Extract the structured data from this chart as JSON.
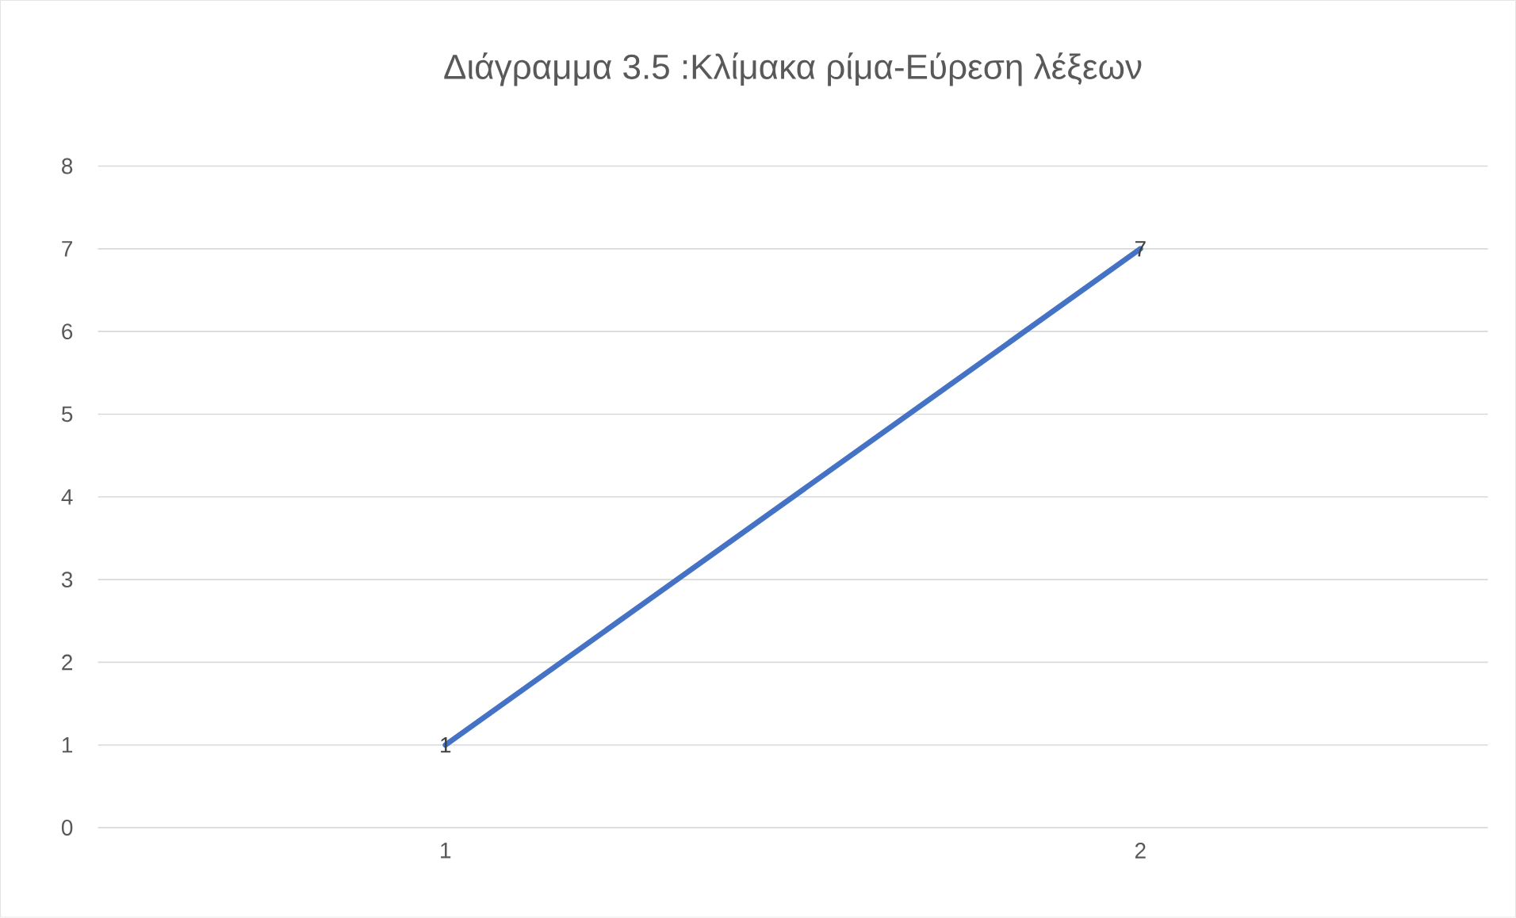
{
  "chart_data": {
    "type": "line",
    "title": "Διάγραμμα 3.5 :Κλίμακα ρίμα-Εύρεση λέξεων",
    "categories": [
      "1",
      "2"
    ],
    "values": [
      1,
      7
    ],
    "value_labels": [
      "1",
      "7"
    ],
    "color": "#4472c4",
    "ylim": [
      0,
      8
    ],
    "yticks": [
      0,
      1,
      2,
      3,
      4,
      5,
      6,
      7,
      8
    ],
    "grid": "y",
    "marker": "none",
    "line_style": "solid"
  }
}
